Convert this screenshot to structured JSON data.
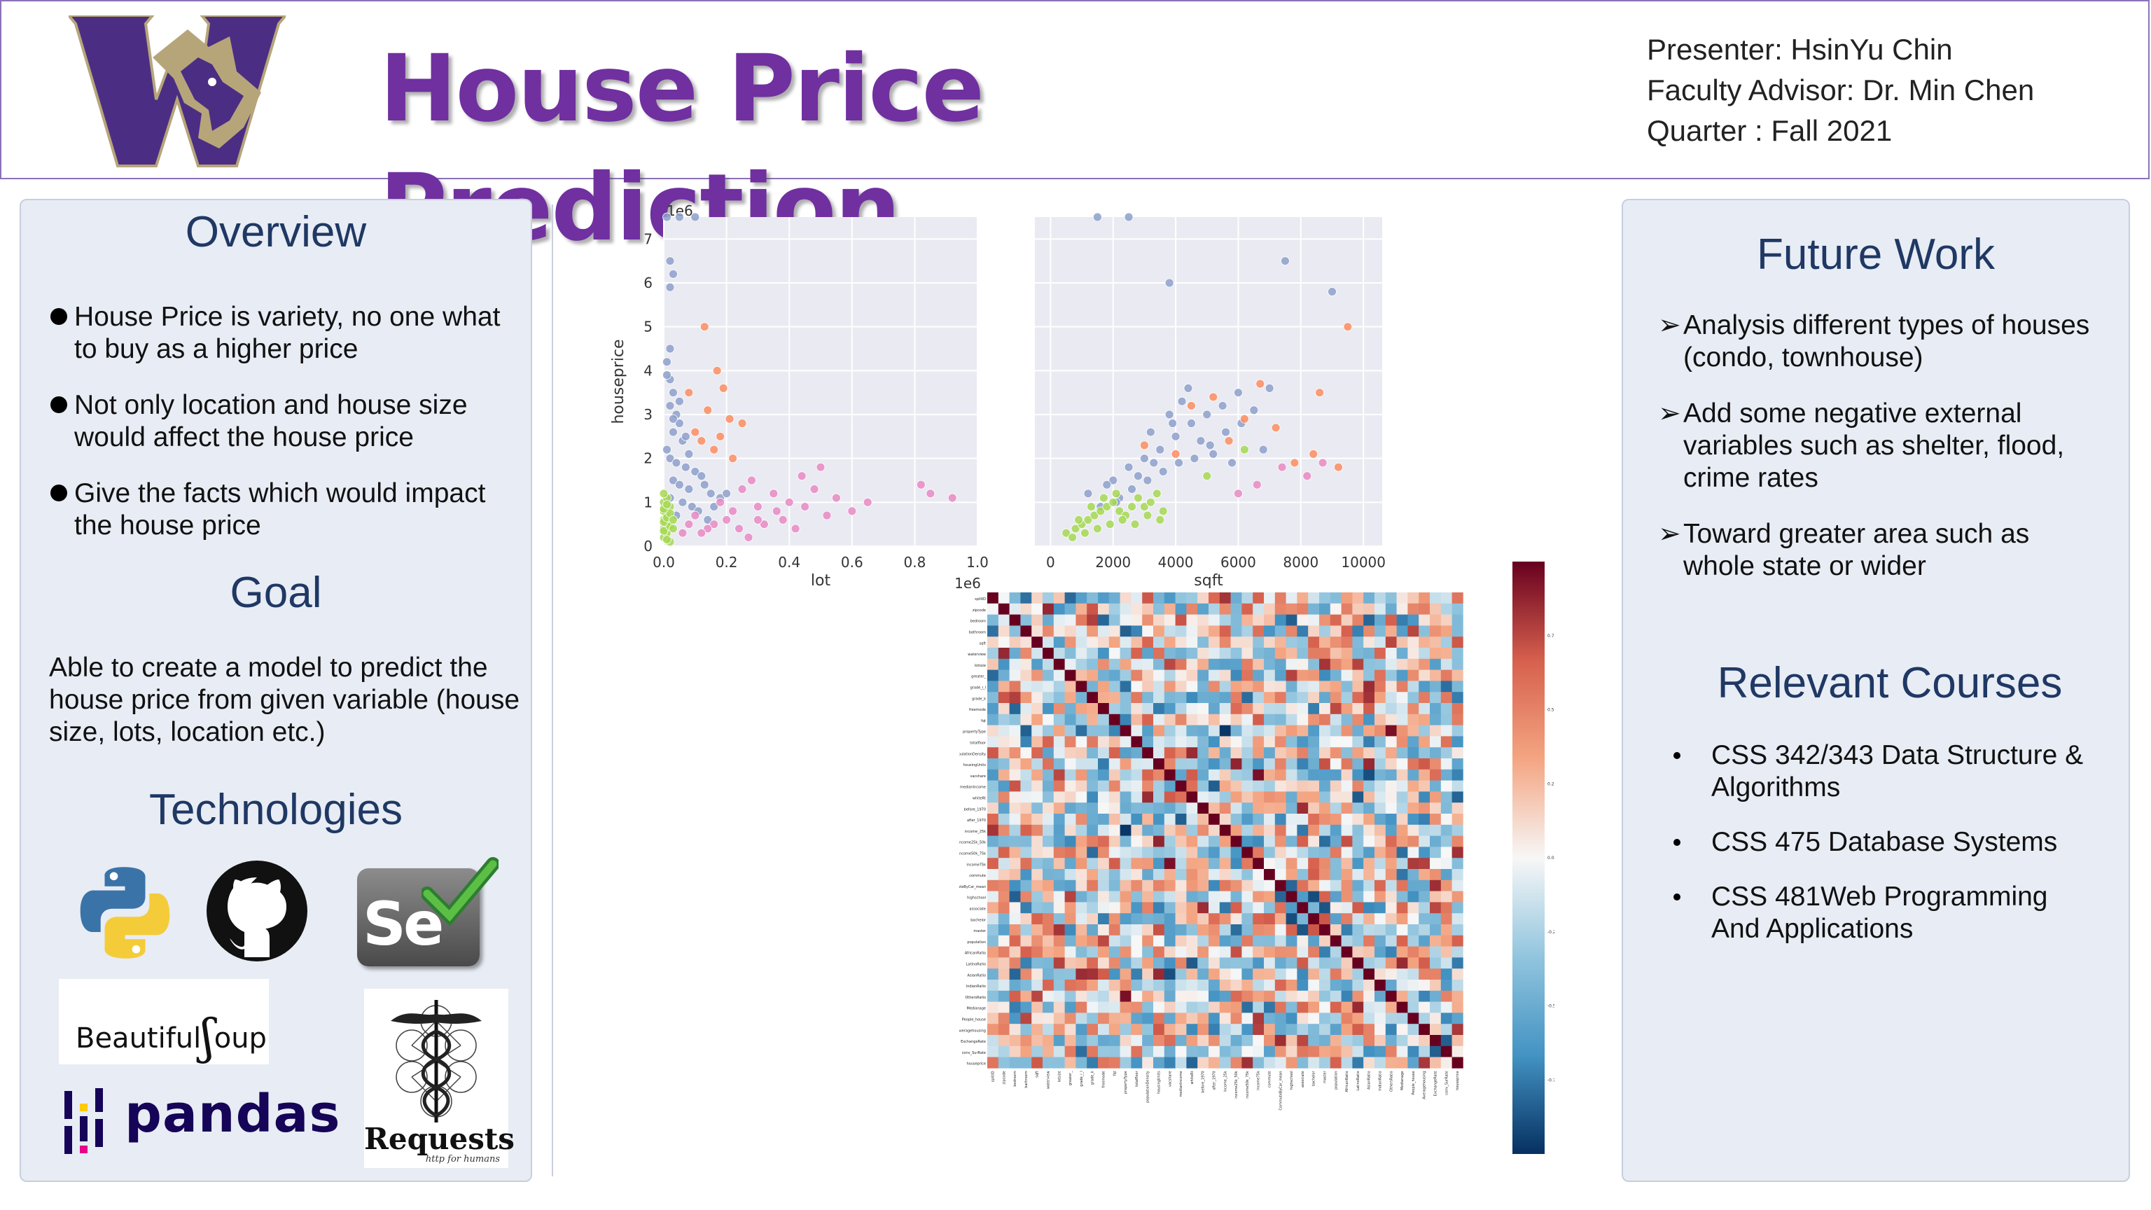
{
  "header": {
    "title": "House Price Prediction",
    "presenter": "Presenter: HsinYu Chin",
    "advisor": "Faculty Advisor: Dr. Min Chen",
    "quarter": "Quarter : Fall 2021",
    "logo_icon": "uw-husky-logo-icon",
    "colors": {
      "title": "#7030a0",
      "logo_purple": "#4b2e83",
      "logo_gold": "#b7a57a"
    }
  },
  "overview": {
    "heading": "Overview",
    "bullets": [
      "House Price is variety, no one what to buy as a higher price",
      "Not only location and house size would affect the house price",
      "Give the facts which would impact the house price"
    ]
  },
  "goal": {
    "heading": "Goal",
    "text": "Able to create a model to predict the house price from given variable (house size, lots, location etc.)"
  },
  "technologies": {
    "heading": "Technologies",
    "items": [
      "python-icon",
      "github-icon",
      "selenium-icon",
      "beautifulsoup-logo",
      "pandas-logo",
      "requests-logo"
    ],
    "beautifulsoup_label": "Beautiful",
    "beautifulsoup_suffix": "oup",
    "pandas_label": "pandas",
    "requests_label": "Requests",
    "requests_tagline": "http for humans",
    "selenium_label": "Se"
  },
  "future_work": {
    "heading": "Future Work",
    "bullets": [
      "Analysis different types of houses (condo, townhouse)",
      "Add some negative external variables such as shelter, flood, crime rates",
      "Toward greater area such as whole state or wider"
    ],
    "bullet_glyph": "➢"
  },
  "courses": {
    "heading": "Relevant Courses",
    "items": [
      "CSS 342/343 Data Structure & Algorithms",
      "CSS 475 Database Systems",
      "CSS 481Web Programming And Applications"
    ]
  },
  "chart_data": [
    {
      "type": "scatter",
      "xlabel": "lot",
      "ylabel": "houseprice",
      "x_offset_label": "1e6",
      "y_offset_label": "1e6",
      "xlim": [
        0.0,
        1.0
      ],
      "ylim": [
        0,
        7.5
      ],
      "xticks": [
        "0.0",
        "0.2",
        "0.4",
        "0.6",
        "0.8",
        "1.0"
      ],
      "yticks": [
        "0",
        "1",
        "2",
        "3",
        "4",
        "5",
        "6",
        "7"
      ],
      "grid": true,
      "series": [
        {
          "color": "#8da0cb",
          "points": [
            [
              0.01,
              7.5
            ],
            [
              0.05,
              7.5
            ],
            [
              0.1,
              7.5
            ],
            [
              0.02,
              6.5
            ],
            [
              0.03,
              6.2
            ],
            [
              0.02,
              5.9
            ],
            [
              0.01,
              4.2
            ],
            [
              0.02,
              3.8
            ],
            [
              0.03,
              3.5
            ],
            [
              0.02,
              3.2
            ],
            [
              0.04,
              3.0
            ],
            [
              0.05,
              2.8
            ],
            [
              0.03,
              2.6
            ],
            [
              0.06,
              2.4
            ],
            [
              0.01,
              2.2
            ],
            [
              0.02,
              2.0
            ],
            [
              0.04,
              1.9
            ],
            [
              0.07,
              1.8
            ],
            [
              0.1,
              1.7
            ],
            [
              0.12,
              1.6
            ],
            [
              0.03,
              1.5
            ],
            [
              0.05,
              1.4
            ],
            [
              0.08,
              1.3
            ],
            [
              0.15,
              1.2
            ],
            [
              0.02,
              1.1
            ],
            [
              0.06,
              1.0
            ],
            [
              0.09,
              0.9
            ],
            [
              0.11,
              0.8
            ],
            [
              0.04,
              0.7
            ],
            [
              0.03,
              2.9
            ],
            [
              0.05,
              3.3
            ],
            [
              0.07,
              2.5
            ],
            [
              0.01,
              3.9
            ],
            [
              0.02,
              4.5
            ],
            [
              0.08,
              2.1
            ],
            [
              0.13,
              1.4
            ],
            [
              0.18,
              1.1
            ],
            [
              0.16,
              0.9
            ],
            [
              0.2,
              1.2
            ],
            [
              0.14,
              0.6
            ]
          ]
        },
        {
          "color": "#fc8d62",
          "points": [
            [
              0.13,
              5.0
            ],
            [
              0.17,
              4.0
            ],
            [
              0.19,
              3.6
            ],
            [
              0.14,
              3.1
            ],
            [
              0.21,
              2.9
            ],
            [
              0.25,
              2.8
            ],
            [
              0.08,
              3.5
            ],
            [
              0.12,
              2.4
            ],
            [
              0.16,
              2.2
            ],
            [
              0.22,
              2.0
            ],
            [
              0.1,
              2.6
            ],
            [
              0.18,
              2.5
            ]
          ]
        },
        {
          "color": "#e78ac3",
          "points": [
            [
              0.82,
              1.4
            ],
            [
              0.85,
              1.2
            ],
            [
              0.92,
              1.1
            ],
            [
              0.65,
              1.0
            ],
            [
              0.5,
              1.8
            ],
            [
              0.44,
              1.6
            ],
            [
              0.4,
              1.0
            ],
            [
              0.35,
              1.2
            ],
            [
              0.3,
              0.9
            ],
            [
              0.28,
              1.5
            ],
            [
              0.25,
              1.3
            ],
            [
              0.22,
              0.8
            ],
            [
              0.2,
              0.6
            ],
            [
              0.18,
              1.0
            ],
            [
              0.16,
              0.5
            ],
            [
              0.14,
              0.4
            ],
            [
              0.12,
              0.3
            ],
            [
              0.1,
              0.7
            ],
            [
              0.08,
              0.5
            ],
            [
              0.06,
              0.3
            ],
            [
              0.24,
              0.4
            ],
            [
              0.32,
              0.5
            ],
            [
              0.38,
              0.6
            ],
            [
              0.45,
              0.9
            ],
            [
              0.48,
              1.3
            ],
            [
              0.52,
              0.7
            ],
            [
              0.42,
              0.4
            ],
            [
              0.36,
              0.8
            ],
            [
              0.3,
              0.6
            ],
            [
              0.27,
              0.2
            ],
            [
              0.55,
              1.1
            ],
            [
              0.6,
              0.8
            ]
          ]
        },
        {
          "color": "#a6d854",
          "points": [
            [
              0.0,
              0.2
            ],
            [
              0.01,
              0.3
            ],
            [
              0.0,
              0.4
            ],
            [
              0.01,
              0.5
            ],
            [
              0.0,
              0.6
            ],
            [
              0.01,
              0.7
            ],
            [
              0.0,
              0.8
            ],
            [
              0.02,
              0.9
            ],
            [
              0.0,
              1.0
            ],
            [
              0.01,
              1.1
            ],
            [
              0.0,
              1.2
            ],
            [
              0.02,
              0.1
            ],
            [
              0.01,
              0.15
            ],
            [
              0.0,
              0.35
            ],
            [
              0.02,
              0.45
            ],
            [
              0.0,
              0.55
            ],
            [
              0.01,
              0.65
            ],
            [
              0.02,
              0.75
            ],
            [
              0.0,
              0.85
            ],
            [
              0.01,
              0.95
            ],
            [
              0.03,
              0.4
            ],
            [
              0.03,
              0.6
            ]
          ]
        }
      ]
    },
    {
      "type": "scatter",
      "xlabel": "sqft",
      "ylabel": "",
      "xlim": [
        -500,
        10600
      ],
      "ylim": [
        0,
        7.5
      ],
      "xticks": [
        "0",
        "2000",
        "4000",
        "6000",
        "8000",
        "10000"
      ],
      "grid": true,
      "series": [
        {
          "color": "#8da0cb",
          "points": [
            [
              1500,
              7.5
            ],
            [
              2500,
              7.5
            ],
            [
              3800,
              6.0
            ],
            [
              7500,
              6.5
            ],
            [
              9000,
              5.8
            ],
            [
              2000,
              1.5
            ],
            [
              2500,
              1.8
            ],
            [
              3000,
              2.0
            ],
            [
              3500,
              2.2
            ],
            [
              4000,
              2.5
            ],
            [
              4500,
              2.8
            ],
            [
              5000,
              3.0
            ],
            [
              5500,
              3.2
            ],
            [
              6000,
              3.5
            ],
            [
              3200,
              2.6
            ],
            [
              3800,
              3.0
            ],
            [
              4200,
              3.3
            ],
            [
              2800,
              1.6
            ],
            [
              3300,
              1.9
            ],
            [
              4800,
              2.4
            ],
            [
              5200,
              2.1
            ],
            [
              1200,
              1.2
            ],
            [
              1800,
              1.4
            ],
            [
              2200,
              1.1
            ],
            [
              2600,
              1.3
            ],
            [
              3100,
              1.5
            ],
            [
              3600,
              1.7
            ],
            [
              4100,
              1.9
            ],
            [
              4600,
              2.0
            ],
            [
              5100,
              2.3
            ],
            [
              5600,
              2.6
            ],
            [
              6100,
              2.8
            ],
            [
              6500,
              3.1
            ],
            [
              7000,
              3.6
            ],
            [
              1600,
              0.9
            ],
            [
              2100,
              1.0
            ],
            [
              6800,
              2.2
            ],
            [
              4400,
              3.6
            ],
            [
              3900,
              2.8
            ],
            [
              5800,
              1.9
            ]
          ]
        },
        {
          "color": "#fc8d62",
          "points": [
            [
              9500,
              5.0
            ],
            [
              8600,
              3.5
            ],
            [
              6700,
              3.7
            ],
            [
              4500,
              3.2
            ],
            [
              5200,
              3.4
            ],
            [
              6200,
              2.9
            ],
            [
              7200,
              2.7
            ],
            [
              5700,
              2.4
            ],
            [
              3000,
              2.3
            ],
            [
              4000,
              2.1
            ],
            [
              7800,
              1.9
            ],
            [
              8400,
              2.1
            ],
            [
              9200,
              1.8
            ]
          ]
        },
        {
          "color": "#e78ac3",
          "points": [
            [
              8700,
              1.9
            ],
            [
              7400,
              1.8
            ],
            [
              8200,
              1.6
            ],
            [
              6600,
              1.4
            ],
            [
              6000,
              1.2
            ]
          ]
        },
        {
          "color": "#a6d854",
          "points": [
            [
              500,
              0.3
            ],
            [
              800,
              0.4
            ],
            [
              1000,
              0.5
            ],
            [
              1200,
              0.6
            ],
            [
              1400,
              0.7
            ],
            [
              1600,
              0.8
            ],
            [
              1800,
              0.9
            ],
            [
              2000,
              1.0
            ],
            [
              2200,
              0.8
            ],
            [
              2400,
              0.7
            ],
            [
              2600,
              0.9
            ],
            [
              2800,
              1.1
            ],
            [
              3000,
              0.9
            ],
            [
              3200,
              1.0
            ],
            [
              3400,
              1.2
            ],
            [
              3600,
              0.8
            ],
            [
              700,
              0.2
            ],
            [
              1100,
              0.3
            ],
            [
              1500,
              0.4
            ],
            [
              1900,
              0.5
            ],
            [
              2300,
              0.6
            ],
            [
              2700,
              0.5
            ],
            [
              3100,
              0.7
            ],
            [
              3500,
              0.6
            ],
            [
              900,
              0.6
            ],
            [
              1300,
              0.9
            ],
            [
              1700,
              1.1
            ],
            [
              2100,
              1.2
            ],
            [
              6200,
              2.2
            ],
            [
              5000,
              1.6
            ]
          ]
        }
      ]
    },
    {
      "type": "heatmap",
      "title": "",
      "colorbar_ticks": [
        "0.75",
        "0.50",
        "0.25",
        "0.00",
        "-0.25",
        "-0.50",
        "-0.75"
      ],
      "colormap": [
        "#67001f",
        "#d6604d",
        "#f4a582",
        "#f7f7f7",
        "#92c5de",
        "#4393c3",
        "#053061"
      ],
      "labels": [
        "splitID",
        "zipcode",
        "bedroom",
        "bathroom",
        "sqft",
        "waterview",
        "lotsize",
        "greater_",
        "grade_i_l",
        "grade_k",
        "freemode",
        "fqt",
        "propertyType",
        "totalfloor",
        "populationDensity",
        "housingUnits",
        "vacshare",
        "medianIncome",
        "whiteRt",
        "before_1970",
        "after_1970",
        "income_25k",
        "income25k_50k",
        "income50k_75k",
        "income75k",
        "commute",
        "CommuteByCar_mean",
        "highschool",
        "associate",
        "bachelor",
        "master",
        "population",
        "AfricanRatio",
        "LatinoRatio",
        "AsianRatio",
        "IndianRatio",
        "OthersRatio",
        "Medianage",
        "People_house",
        "Averagehousing",
        "ExchangeRate",
        "conv_SurRate",
        "houseprice"
      ],
      "size": 43
    }
  ]
}
